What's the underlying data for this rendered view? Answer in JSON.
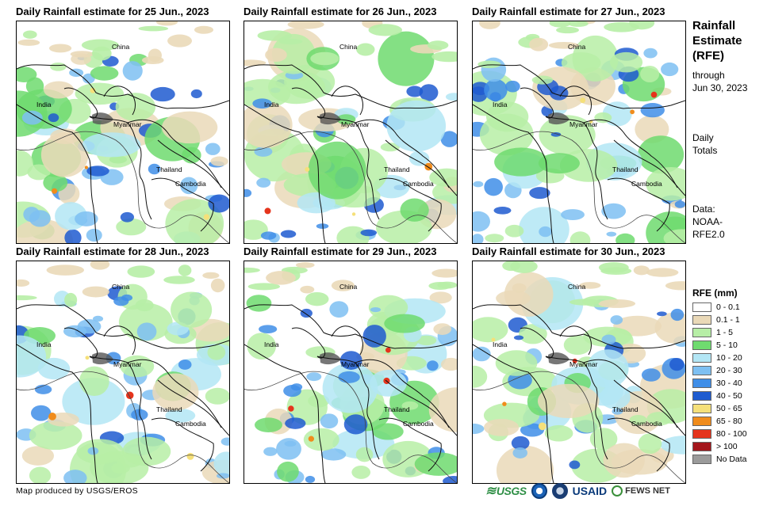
{
  "panels": [
    {
      "title": "Daily Rainfall estimate for 25 Jun., 2023"
    },
    {
      "title": "Daily Rainfall estimate for 26 Jun., 2023"
    },
    {
      "title": "Daily Rainfall estimate for 27 Jun., 2023"
    },
    {
      "title": "Daily Rainfall estimate for 28 Jun., 2023"
    },
    {
      "title": "Daily Rainfall estimate for 29 Jun., 2023"
    },
    {
      "title": "Daily Rainfall estimate for 30 Jun., 2023"
    }
  ],
  "map_labels": {
    "china": "China",
    "india": "India",
    "myanmar": "Myanmar",
    "thailand": "Thailand",
    "cambodia": "Cambodia"
  },
  "sidebar": {
    "title_line1": "Rainfall",
    "title_line2": "Estimate",
    "title_line3": "(RFE)",
    "through_line1": "through",
    "through_line2": "Jun 30, 2023",
    "totals_line1": "Daily",
    "totals_line2": "Totals",
    "data_line1": "Data:",
    "data_line2": "NOAA-",
    "data_line3": "RFE2.0"
  },
  "legend": {
    "title": "RFE (mm)",
    "items": [
      {
        "label": "0 - 0.1",
        "color": "#ffffff"
      },
      {
        "label": "0.1 - 1",
        "color": "#ead9b8"
      },
      {
        "label": "1 - 5",
        "color": "#b7eea6"
      },
      {
        "label": "5 - 10",
        "color": "#6fdb6f"
      },
      {
        "label": "10 - 20",
        "color": "#b3e6f5"
      },
      {
        "label": "20 - 30",
        "color": "#7ec0f2"
      },
      {
        "label": "30 - 40",
        "color": "#3f8ee8"
      },
      {
        "label": "40 - 50",
        "color": "#1e5bd0"
      },
      {
        "label": "50 - 65",
        "color": "#f5e07a"
      },
      {
        "label": "65 - 80",
        "color": "#f08c1c"
      },
      {
        "label": "80 - 100",
        "color": "#e5341c"
      },
      {
        "label": "> 100",
        "color": "#a3161b"
      },
      {
        "label": "No Data",
        "color": "#9b9b9b"
      }
    ]
  },
  "footer": {
    "credit": "Map produced by USGS/EROS",
    "logo_usgs": "USGS",
    "logo_usaid": "USAID",
    "logo_fews": "FEWS NET"
  }
}
